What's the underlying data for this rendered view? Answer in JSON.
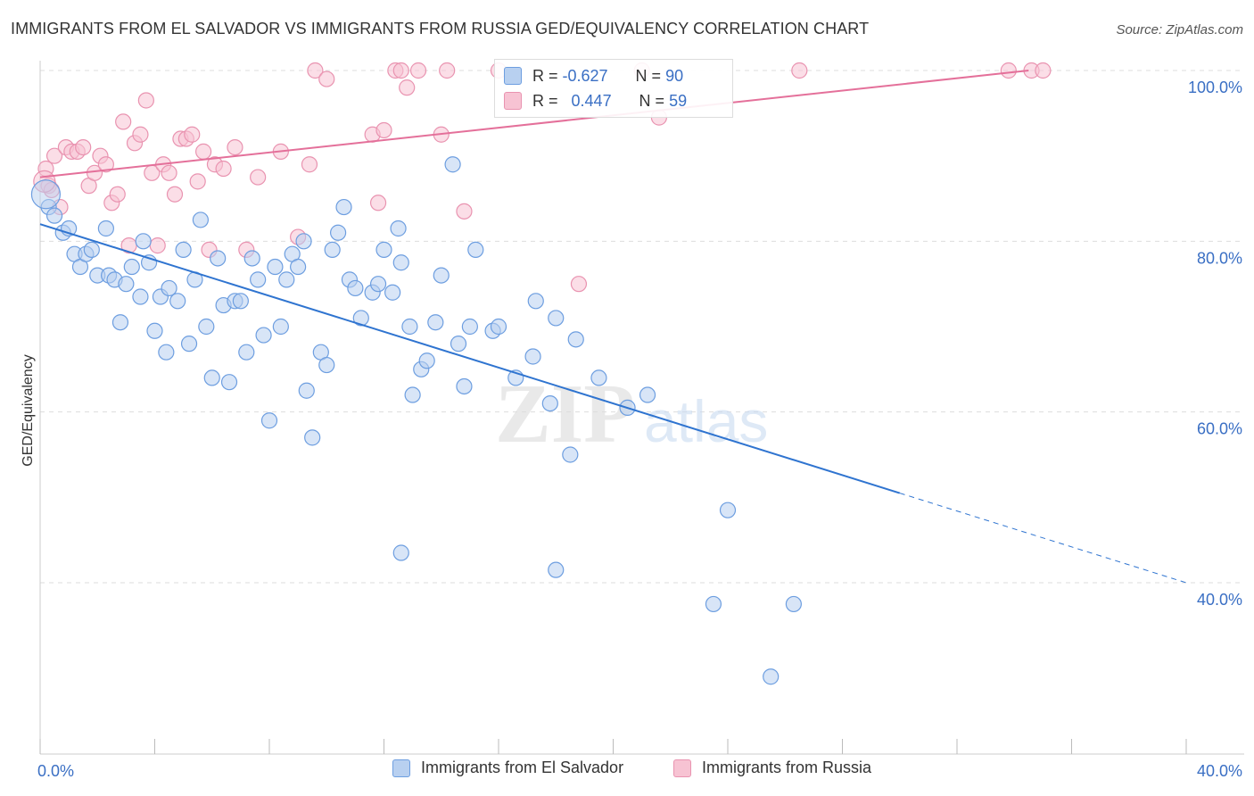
{
  "header": {
    "title": "IMMIGRANTS FROM EL SALVADOR VS IMMIGRANTS FROM RUSSIA GED/EQUIVALENCY CORRELATION CHART",
    "source": "Source: ZipAtlas.com"
  },
  "watermark": "ZIPatlas",
  "stats": {
    "row1": {
      "r_label": "R =",
      "r_value": "-0.627",
      "n_label": "N =",
      "n_value": "90"
    },
    "row2": {
      "r_label": "R =",
      "r_value": "0.447",
      "n_label": "N =",
      "n_value": "59"
    }
  },
  "colors": {
    "blue_fill": "#b8d0f0",
    "blue_stroke": "#6d9ee0",
    "blue_line": "#2f74d0",
    "pink_fill": "#f7c3d3",
    "pink_stroke": "#e993b0",
    "pink_line": "#e4709a",
    "accent_text": "#3a6fc4"
  },
  "chart_data": {
    "type": "scatter",
    "title": "IMMIGRANTS FROM EL SALVADOR VS IMMIGRANTS FROM RUSSIA GED/EQUIVALENCY CORRELATION CHART",
    "ylabel": "GED/Equivalency",
    "xlabel": "",
    "xlim": [
      0,
      40
    ],
    "ylim": [
      20,
      102
    ],
    "x_tick_labels": [
      "0.0%",
      "40.0%"
    ],
    "y_ticks": [
      40,
      60,
      80,
      100
    ],
    "y_tick_labels": [
      "40.0%",
      "60.0%",
      "80.0%",
      "100.0%"
    ],
    "grid": true,
    "legend_position": "bottom",
    "series": [
      {
        "name": "Immigrants from El Salvador",
        "color": "#6d9ee0",
        "trend": {
          "x0": 0.0,
          "y0": 82.0,
          "x1": 30.0,
          "y1": 50.5,
          "dash_to_x": 40.0,
          "dash_to_y": 40.0
        },
        "points": [
          [
            0.3,
            84.0
          ],
          [
            0.5,
            83.0
          ],
          [
            0.8,
            81.0
          ],
          [
            1.0,
            81.5
          ],
          [
            1.2,
            78.5
          ],
          [
            1.4,
            77.0
          ],
          [
            1.6,
            78.5
          ],
          [
            1.8,
            79.0
          ],
          [
            2.0,
            76.0
          ],
          [
            2.3,
            81.5
          ],
          [
            2.4,
            76.0
          ],
          [
            2.6,
            75.5
          ],
          [
            2.8,
            70.5
          ],
          [
            3.0,
            75.0
          ],
          [
            3.2,
            77.0
          ],
          [
            3.5,
            73.5
          ],
          [
            3.6,
            80.0
          ],
          [
            3.8,
            77.5
          ],
          [
            4.0,
            69.5
          ],
          [
            4.2,
            73.5
          ],
          [
            4.4,
            67.0
          ],
          [
            4.5,
            74.5
          ],
          [
            4.8,
            73.0
          ],
          [
            5.0,
            79.0
          ],
          [
            5.2,
            68.0
          ],
          [
            5.4,
            75.5
          ],
          [
            5.6,
            82.5
          ],
          [
            5.8,
            70.0
          ],
          [
            6.0,
            64.0
          ],
          [
            6.2,
            78.0
          ],
          [
            6.4,
            72.5
          ],
          [
            6.6,
            63.5
          ],
          [
            6.8,
            73.0
          ],
          [
            7.0,
            73.0
          ],
          [
            7.2,
            67.0
          ],
          [
            7.4,
            78.0
          ],
          [
            7.6,
            75.5
          ],
          [
            7.8,
            69.0
          ],
          [
            8.0,
            59.0
          ],
          [
            8.2,
            77.0
          ],
          [
            8.4,
            70.0
          ],
          [
            8.6,
            75.5
          ],
          [
            8.8,
            78.5
          ],
          [
            9.0,
            77.0
          ],
          [
            9.2,
            80.0
          ],
          [
            9.3,
            62.5
          ],
          [
            9.5,
            57.0
          ],
          [
            9.8,
            67.0
          ],
          [
            10.0,
            65.5
          ],
          [
            10.2,
            79.0
          ],
          [
            10.4,
            81.0
          ],
          [
            10.6,
            84.0
          ],
          [
            10.8,
            75.5
          ],
          [
            11.0,
            74.5
          ],
          [
            11.2,
            71.0
          ],
          [
            11.6,
            74.0
          ],
          [
            11.8,
            75.0
          ],
          [
            12.0,
            79.0
          ],
          [
            12.3,
            74.0
          ],
          [
            12.6,
            77.5
          ],
          [
            12.5,
            81.5
          ],
          [
            12.9,
            70.0
          ],
          [
            13.3,
            65.0
          ],
          [
            13.5,
            66.0
          ],
          [
            13.8,
            70.5
          ],
          [
            14.0,
            76.0
          ],
          [
            14.4,
            89.0
          ],
          [
            14.6,
            68.0
          ],
          [
            14.8,
            63.0
          ],
          [
            15.0,
            70.0
          ],
          [
            15.2,
            79.0
          ],
          [
            15.8,
            69.5
          ],
          [
            16.0,
            70.0
          ],
          [
            16.6,
            64.0
          ],
          [
            17.2,
            66.5
          ],
          [
            17.3,
            73.0
          ],
          [
            17.8,
            61.0
          ],
          [
            18.0,
            71.0
          ],
          [
            18.5,
            55.0
          ],
          [
            18.7,
            68.5
          ],
          [
            24.0,
            48.5
          ],
          [
            12.6,
            43.5
          ],
          [
            18.0,
            41.5
          ],
          [
            23.5,
            37.5
          ],
          [
            26.3,
            37.5
          ],
          [
            25.5,
            29.0
          ],
          [
            21.2,
            62.0
          ],
          [
            20.5,
            60.5
          ],
          [
            13.0,
            62.0
          ],
          [
            19.5,
            64.0
          ]
        ]
      },
      {
        "name": "Immigrants from Russia",
        "color": "#e993b0",
        "trend": {
          "x0": 0.0,
          "y0": 87.5,
          "x1": 34.5,
          "y1": 100.0
        },
        "points": [
          [
            0.2,
            88.5
          ],
          [
            0.3,
            86.5
          ],
          [
            0.5,
            90.0
          ],
          [
            0.7,
            84.0
          ],
          [
            0.9,
            91.0
          ],
          [
            1.1,
            90.5
          ],
          [
            1.3,
            90.5
          ],
          [
            1.5,
            91.0
          ],
          [
            1.7,
            86.5
          ],
          [
            1.9,
            88.0
          ],
          [
            2.1,
            90.0
          ],
          [
            2.3,
            89.0
          ],
          [
            2.5,
            84.5
          ],
          [
            2.7,
            85.5
          ],
          [
            2.9,
            94.0
          ],
          [
            3.1,
            79.5
          ],
          [
            3.3,
            91.5
          ],
          [
            3.5,
            92.5
          ],
          [
            3.7,
            96.5
          ],
          [
            3.9,
            88.0
          ],
          [
            4.1,
            79.5
          ],
          [
            4.3,
            89.0
          ],
          [
            4.5,
            88.0
          ],
          [
            4.7,
            85.5
          ],
          [
            4.9,
            92.0
          ],
          [
            5.1,
            92.0
          ],
          [
            5.3,
            92.5
          ],
          [
            5.5,
            87.0
          ],
          [
            5.7,
            90.5
          ],
          [
            5.9,
            79.0
          ],
          [
            6.1,
            89.0
          ],
          [
            6.4,
            88.5
          ],
          [
            6.8,
            91.0
          ],
          [
            7.2,
            79.0
          ],
          [
            7.6,
            87.5
          ],
          [
            8.4,
            90.5
          ],
          [
            9.0,
            80.5
          ],
          [
            9.4,
            89.0
          ],
          [
            9.6,
            100.0
          ],
          [
            10.0,
            99.0
          ],
          [
            11.6,
            92.5
          ],
          [
            11.8,
            84.5
          ],
          [
            12.0,
            93.0
          ],
          [
            12.4,
            100.0
          ],
          [
            12.6,
            100.0
          ],
          [
            12.8,
            98.0
          ],
          [
            13.2,
            100.0
          ],
          [
            14.0,
            92.5
          ],
          [
            14.2,
            100.0
          ],
          [
            14.8,
            83.5
          ],
          [
            16.0,
            100.0
          ],
          [
            18.8,
            75.0
          ],
          [
            21.0,
            100.0
          ],
          [
            21.6,
            94.5
          ],
          [
            26.5,
            100.0
          ],
          [
            33.8,
            100.0
          ],
          [
            34.6,
            100.0
          ],
          [
            35.0,
            100.0
          ],
          [
            0.4,
            86.0
          ]
        ]
      }
    ]
  }
}
